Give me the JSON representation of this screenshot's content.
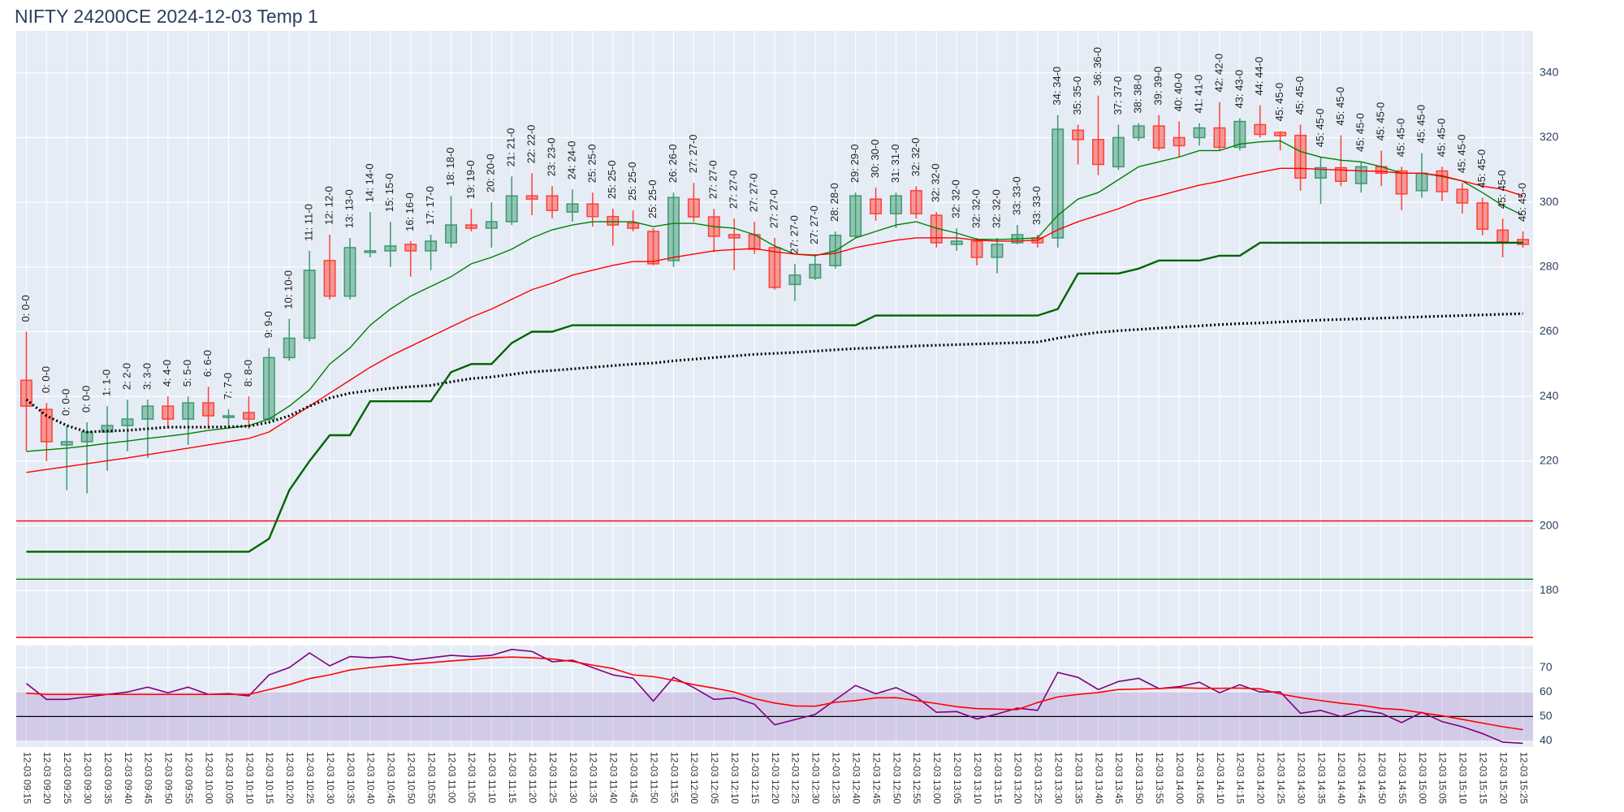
{
  "chart_data": [
    {
      "type": "candlestick",
      "title": "NIFTY 24200CE 2024-12-03 Temp 1",
      "categories": [
        "12-03 09:15",
        "12-03 09:20",
        "12-03 09:25",
        "12-03 09:30",
        "12-03 09:35",
        "12-03 09:40",
        "12-03 09:45",
        "12-03 09:50",
        "12-03 09:55",
        "12-03 10:00",
        "12-03 10:05",
        "12-03 10:10",
        "12-03 10:15",
        "12-03 10:20",
        "12-03 10:25",
        "12-03 10:30",
        "12-03 10:35",
        "12-03 10:40",
        "12-03 10:45",
        "12-03 10:50",
        "12-03 10:55",
        "12-03 11:00",
        "12-03 11:05",
        "12-03 11:10",
        "12-03 11:15",
        "12-03 11:20",
        "12-03 11:25",
        "12-03 11:30",
        "12-03 11:35",
        "12-03 11:40",
        "12-03 11:45",
        "12-03 11:50",
        "12-03 11:55",
        "12-03 12:00",
        "12-03 12:05",
        "12-03 12:10",
        "12-03 12:15",
        "12-03 12:20",
        "12-03 12:25",
        "12-03 12:30",
        "12-03 12:35",
        "12-03 12:40",
        "12-03 12:45",
        "12-03 12:50",
        "12-03 12:55",
        "12-03 13:00",
        "12-03 13:05",
        "12-03 13:10",
        "12-03 13:15",
        "12-03 13:20",
        "12-03 13:25",
        "12-03 13:30",
        "12-03 13:35",
        "12-03 13:40",
        "12-03 13:45",
        "12-03 13:50",
        "12-03 13:55",
        "12-03 14:00",
        "12-03 14:05",
        "12-03 14:10",
        "12-03 14:15",
        "12-03 14:20",
        "12-03 14:25",
        "12-03 14:30",
        "12-03 14:35",
        "12-03 14:40",
        "12-03 14:45",
        "12-03 14:50",
        "12-03 14:55",
        "12-03 15:00",
        "12-03 15:05",
        "12-03 15:10",
        "12-03 15:15",
        "12-03 15:20",
        "12-03 15:25"
      ],
      "open": [
        245,
        236,
        225,
        226,
        229,
        231,
        233,
        237,
        233,
        238,
        233.5,
        235,
        233,
        252,
        258,
        282,
        271,
        284.5,
        285,
        287,
        285,
        287.5,
        293,
        292,
        294,
        302,
        302,
        297,
        299.5,
        295.6,
        293.6,
        291,
        282,
        301,
        295.5,
        290,
        290,
        286,
        274.6,
        276.6,
        280.4,
        289.5,
        301,
        296.5,
        303.6,
        296,
        287,
        288,
        283,
        287.5,
        289,
        289,
        322.3,
        319.4,
        311,
        320,
        323.6,
        320,
        320,
        323,
        317,
        324,
        321.6,
        320.7,
        307.5,
        310.7,
        305.8,
        311,
        309.7,
        303.6,
        309.7,
        304,
        299.8,
        291.4,
        288.5
      ],
      "high": [
        260,
        238,
        231,
        232,
        237,
        239,
        239,
        240,
        240,
        243,
        236,
        240,
        255,
        264,
        285,
        290,
        289,
        297,
        294,
        288,
        290,
        302,
        298,
        300,
        308,
        309,
        305,
        304,
        303,
        298,
        297.5,
        292,
        303,
        306,
        298,
        295,
        294,
        289,
        281,
        284,
        291,
        303,
        304.5,
        303,
        305,
        297,
        292,
        289,
        289,
        293,
        290,
        327,
        324,
        333,
        324,
        324.5,
        327,
        325,
        324.5,
        331,
        326,
        330,
        322,
        324,
        314,
        320.7,
        312.6,
        316,
        311,
        315.2,
        311,
        306,
        301.4,
        295,
        291
      ],
      "low": [
        223,
        220,
        211,
        210,
        217,
        223,
        221,
        230,
        225,
        230,
        230,
        230,
        232,
        251,
        257,
        270,
        270,
        283,
        280,
        277,
        279,
        286,
        291,
        286,
        293,
        296,
        295,
        294,
        292.5,
        286.6,
        291,
        280.5,
        280,
        294,
        284.6,
        279,
        284,
        273,
        269.5,
        276,
        279.5,
        289,
        294.3,
        292,
        295,
        286,
        285,
        280.5,
        278,
        287,
        286,
        286,
        311.7,
        308.4,
        310,
        319,
        316,
        314,
        317.5,
        316,
        316,
        320,
        316,
        303.6,
        299.5,
        305,
        303,
        305,
        297.5,
        301.4,
        300.4,
        296.5,
        289.8,
        283,
        286
      ],
      "close": [
        237,
        226,
        226,
        229,
        231,
        233,
        237,
        233,
        238,
        234,
        234,
        233,
        252,
        258,
        279,
        271,
        286,
        285,
        286.5,
        285,
        288,
        293,
        292,
        294,
        302,
        301,
        297.5,
        299.5,
        295.6,
        293,
        292,
        281,
        301.5,
        295.5,
        289.5,
        289,
        285.5,
        273.7,
        277.5,
        280.8,
        289.8,
        302,
        296.5,
        302,
        296.5,
        287.5,
        288,
        283,
        287,
        290,
        287.5,
        322.6,
        319.4,
        311.7,
        320,
        323.6,
        316.8,
        317.5,
        323,
        317,
        325,
        321,
        320.6,
        307.5,
        310.7,
        306.5,
        311,
        309,
        302.6,
        309,
        303.3,
        299.8,
        291.7,
        287.8,
        287
      ],
      "annotations": [
        "0: 0-0",
        "0: 0-0",
        "0: 0-0",
        "0: 0-0",
        "1: 1-0",
        "2: 2-0",
        "3: 3-0",
        "4: 4-0",
        "5: 5-0",
        "6: 6-0",
        "7: 7-0",
        "8: 8-0",
        "9: 9-0",
        "10: 10-0",
        "11: 11-0",
        "12: 12-0",
        "13: 13-0",
        "14: 14-0",
        "15: 15-0",
        "16: 16-0",
        "17: 17-0",
        "18: 18-0",
        "19: 19-0",
        "20: 20-0",
        "21: 21-0",
        "22: 22-0",
        "23: 23-0",
        "24: 24-0",
        "25: 25-0",
        "25: 25-0",
        "25: 25-0",
        "25: 25-0",
        "26: 26-0",
        "27: 27-0",
        "27: 27-0",
        "27: 27-0",
        "27: 27-0",
        "27: 27-0",
        "27: 27-0",
        "27: 27-0",
        "28: 28-0",
        "29: 29-0",
        "30: 30-0",
        "31: 31-0",
        "32: 32-0",
        "32: 32-0",
        "32: 32-0",
        "32: 32-0",
        "32: 32-0",
        "33: 33-0",
        "33: 33-0",
        "34: 34-0",
        "35: 35-0",
        "36: 36-0",
        "37: 37-0",
        "38: 38-0",
        "39: 39-0",
        "40: 40-0",
        "41: 41-0",
        "42: 42-0",
        "43: 43-0",
        "44: 44-0",
        "45: 45-0",
        "45: 45-0",
        "45: 45-0",
        "45: 45-0",
        "45: 45-0",
        "45: 45-0",
        "45: 45-0",
        "45: 45-0",
        "45: 45-0",
        "45: 45-0",
        "45: 45-0",
        "45: 45-0",
        "45: 45-0"
      ],
      "increasing_color": "#3d9970",
      "decreasing_color": "#ff4136",
      "lines": [
        {
          "color": "green",
          "values": [
            223,
            223.5,
            224,
            224.7,
            225.5,
            226.2,
            227,
            227.7,
            228.5,
            229.5,
            230.2,
            231,
            233,
            237,
            242,
            250,
            255,
            262,
            267,
            271,
            274,
            277,
            281,
            283,
            285.5,
            289,
            291.5,
            293,
            294,
            294,
            294,
            292.5,
            293.5,
            293.5,
            292.5,
            292,
            290,
            286.5,
            284,
            283.5,
            285,
            289,
            291,
            293,
            294,
            292,
            290.5,
            288.6,
            288.5,
            288.7,
            289,
            296,
            301,
            303,
            307,
            311,
            312.5,
            314,
            316,
            316,
            318,
            318.7,
            319,
            315.7,
            314,
            313,
            312.5,
            311,
            309,
            309,
            308,
            306.6,
            303,
            299,
            296
          ]
        },
        {
          "color": "red",
          "values": [
            216.5,
            217.4,
            218.3,
            219.2,
            220.1,
            221,
            222,
            223,
            224,
            225,
            226,
            227,
            229,
            233,
            237,
            241,
            245,
            249,
            252.5,
            255.5,
            258.5,
            261.5,
            264.5,
            267,
            270,
            273,
            275,
            277.5,
            279,
            280.5,
            281.7,
            281.7,
            283,
            284,
            285,
            285.4,
            285.7,
            284.7,
            284,
            283.7,
            284.2,
            286,
            287.2,
            288.3,
            289,
            289,
            289,
            288.3,
            288,
            288,
            288.3,
            291.5,
            294,
            296,
            298,
            300.5,
            302,
            303.7,
            305.3,
            306.5,
            308,
            309.3,
            310.5,
            310.5,
            310.2,
            310,
            309.7,
            309.6,
            309,
            309,
            308.2,
            306.6,
            305,
            304,
            302
          ]
        },
        {
          "color": "black",
          "dash": "dot",
          "values": [
            239,
            234,
            231,
            229,
            229.3,
            229.5,
            230,
            230.5,
            230.5,
            230.5,
            230.6,
            230.8,
            232,
            234,
            237,
            239.5,
            241,
            241.8,
            242.5,
            243,
            243.4,
            244.5,
            245.5,
            246,
            246.8,
            247.6,
            248,
            248.5,
            249,
            249.5,
            250,
            250.3,
            251,
            251.5,
            252,
            252.5,
            253,
            253.3,
            253.6,
            254,
            254.4,
            254.8,
            255,
            255.3,
            255.6,
            255.8,
            256,
            256.2,
            256.4,
            256.6,
            256.8,
            258,
            259,
            259.8,
            260.3,
            260.7,
            261.1,
            261.5,
            261.8,
            262.2,
            262.5,
            262.7,
            263,
            263.3,
            263.6,
            263.8,
            264,
            264.2,
            264.4,
            264.6,
            264.8,
            265,
            265.2,
            265.4,
            265.6
          ]
        },
        {
          "color": "darkgreen",
          "values": [
            192,
            192,
            192,
            192,
            192,
            192,
            192,
            192,
            192,
            192,
            192,
            192,
            196,
            211,
            220,
            228,
            228,
            238.5,
            238.5,
            238.5,
            238.5,
            247.5,
            250,
            250,
            256.5,
            260,
            260,
            262,
            262,
            262,
            262,
            262,
            262,
            262,
            262,
            262,
            262,
            262,
            262,
            262,
            262,
            262,
            265,
            265,
            265,
            265,
            265,
            265,
            265,
            265,
            265,
            267,
            278,
            278,
            278,
            279.5,
            282,
            282,
            282,
            283.5,
            283.5,
            287.5,
            287.5,
            287.5,
            287.5,
            287.5,
            287.5,
            287.5,
            287.5,
            287.5,
            287.5,
            287.5,
            287.5,
            287.5,
            287.5
          ]
        }
      ],
      "hlines": [
        {
          "color": "red",
          "value": 201.5
        },
        {
          "color": "green",
          "value": 183.5
        },
        {
          "color": "red",
          "value": 165.5
        }
      ],
      "ylim": [
        165.5,
        353
      ],
      "yticks": [
        180,
        200,
        220,
        240,
        260,
        280,
        300,
        320,
        340
      ],
      "grid": true
    },
    {
      "type": "line",
      "series": [
        {
          "color": "purple",
          "values": [
            63.5,
            57,
            57,
            58,
            59,
            60,
            62,
            59.7,
            62,
            59,
            59.3,
            58.4,
            67,
            70,
            76,
            70.7,
            74.5,
            74,
            74.5,
            73,
            74,
            75,
            74.5,
            75,
            77.4,
            76.6,
            72.4,
            73,
            70,
            67,
            65.6,
            56.3,
            66,
            61.8,
            57,
            57.6,
            55,
            46.6,
            48.7,
            50.8,
            56.8,
            62.7,
            59.3,
            61.8,
            58,
            51.7,
            52,
            49,
            51,
            53.4,
            52.5,
            68,
            66,
            61,
            64.3,
            65.6,
            61.4,
            62.2,
            64,
            59.7,
            63,
            60,
            60,
            51.3,
            52.5,
            50,
            52.5,
            51.3,
            47.5,
            51.7,
            47.9,
            45.8,
            43,
            39.5,
            39
          ]
        },
        {
          "color": "red",
          "values": [
            59.5,
            59,
            59,
            59,
            59,
            59,
            59,
            59,
            59,
            59,
            59,
            59,
            61,
            63,
            65.5,
            67,
            69,
            70,
            70.8,
            71.5,
            72,
            72.7,
            73.3,
            74,
            74.3,
            74,
            73.5,
            72.5,
            71,
            69.6,
            67,
            66.3,
            64.8,
            63,
            61.6,
            60,
            57.3,
            55.5,
            54.3,
            54.2,
            55.8,
            56.5,
            57.6,
            57.7,
            56.5,
            55.3,
            54,
            53.2,
            53,
            52.8,
            55.7,
            58,
            59,
            59.8,
            61,
            61.2,
            61.4,
            61.8,
            61.5,
            61.5,
            61.6,
            61.3,
            59.2,
            57.7,
            56.5,
            55.4,
            54.6,
            53.3,
            52.8,
            51.5,
            50.3,
            48.8,
            47.3,
            45.8,
            44.6
          ]
        }
      ],
      "band": [
        40,
        60
      ],
      "band_color": "#b08fcf",
      "hline": 50,
      "hline_color": "black",
      "ylim": [
        37.5,
        79
      ],
      "yticks": [
        40,
        50,
        60,
        70
      ],
      "grid": true
    }
  ]
}
